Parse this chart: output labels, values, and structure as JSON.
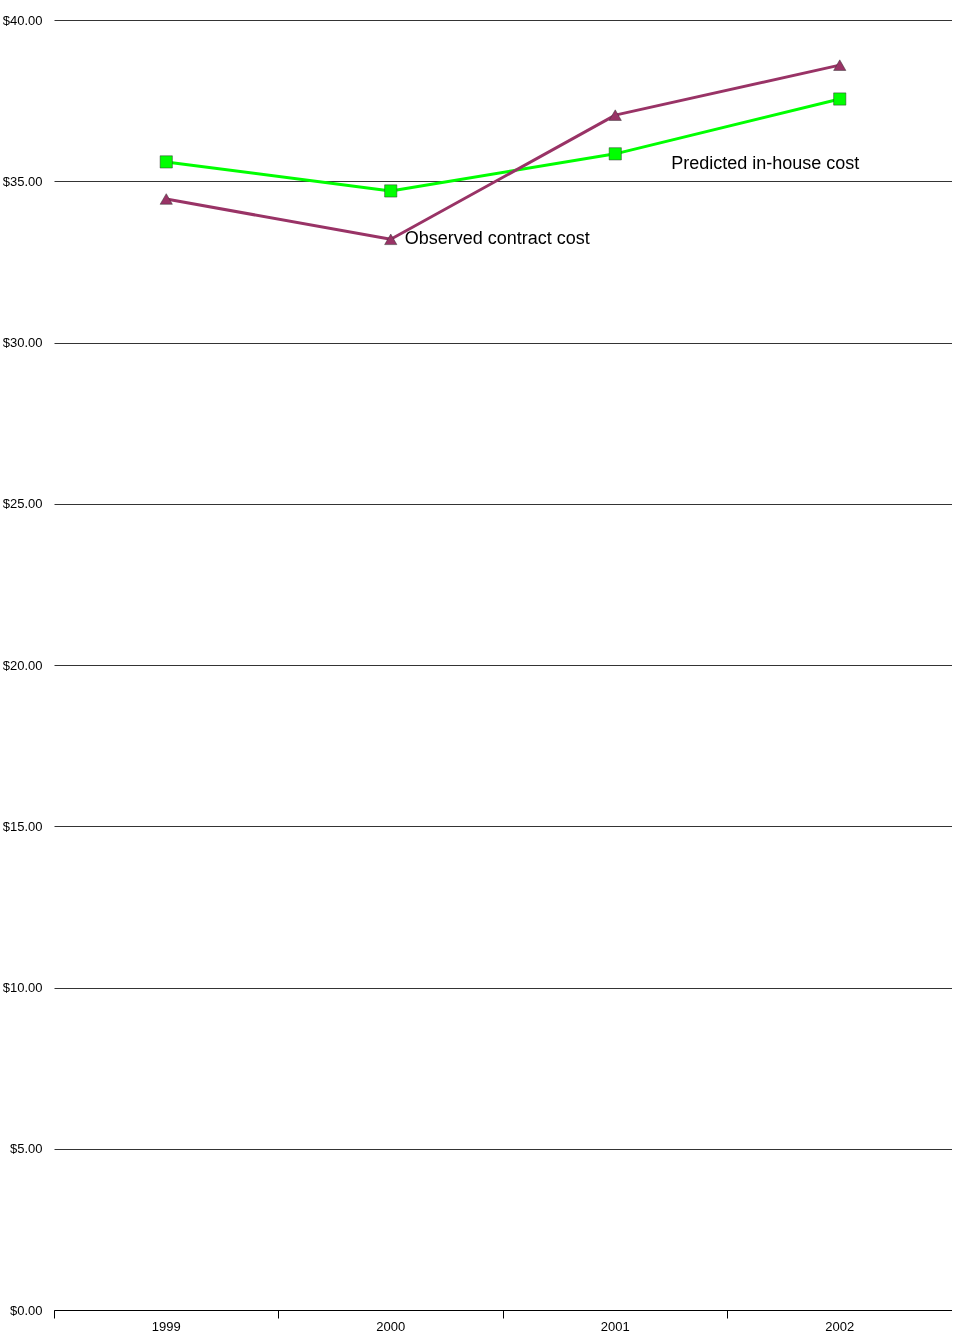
{
  "chart_data": {
    "type": "line",
    "categories": [
      "1999",
      "2000",
      "2001",
      "2002"
    ],
    "series": [
      {
        "name": "Predicted in-house cost",
        "color": "#00ff00",
        "marker": "square",
        "values": [
          35.6,
          34.7,
          35.85,
          37.55
        ]
      },
      {
        "name": "Observed contract cost",
        "color": "#993366",
        "marker": "triangle",
        "values": [
          34.45,
          33.2,
          37.05,
          38.6
        ]
      }
    ],
    "ylim": [
      0,
      40
    ],
    "yticks": [
      {
        "value": 0,
        "label": "$0.00"
      },
      {
        "value": 5,
        "label": "$5.00"
      },
      {
        "value": 10,
        "label": "$10.00"
      },
      {
        "value": 15,
        "label": "$15.00"
      },
      {
        "value": 20,
        "label": "$20.00"
      },
      {
        "value": 25,
        "label": "$25.00"
      },
      {
        "value": 30,
        "label": "$30.00"
      },
      {
        "value": 35,
        "label": "$35.00"
      },
      {
        "value": 40,
        "label": "$40.00"
      }
    ],
    "grid": "y",
    "line_style": "solid"
  }
}
